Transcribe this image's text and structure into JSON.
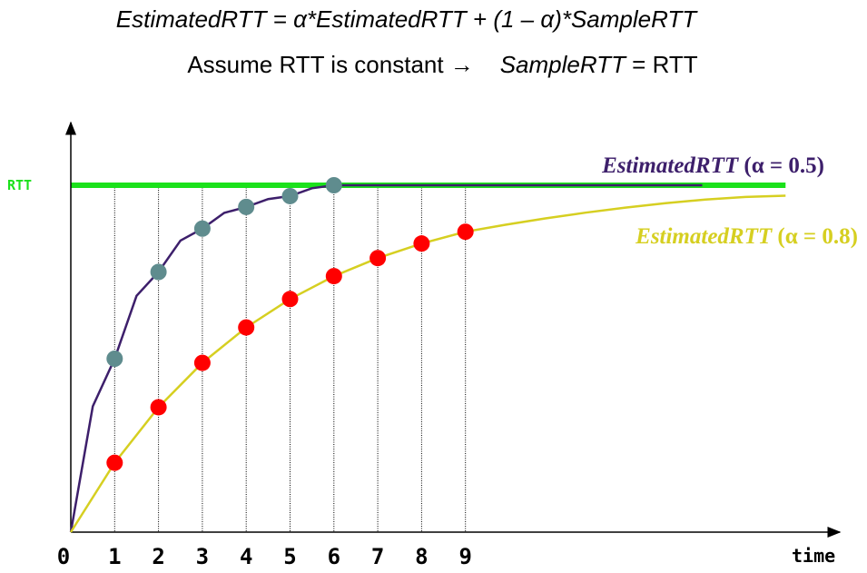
{
  "formula": {
    "line1": "EstimatedRTT = α*EstimatedRTT + (1 – α)*SampleRTT",
    "line2_prefix": "Assume RTT is constant →",
    "line2_var": "SampleRTT",
    "line2_suffix": " = RTT"
  },
  "chart_data": {
    "type": "line",
    "title": "",
    "xlabel": "time",
    "ylabel": "RTT",
    "x": [
      0,
      1,
      2,
      3,
      4,
      5,
      6,
      7,
      8,
      9
    ],
    "x_tick_labels": [
      "0",
      "1",
      "2",
      "3",
      "4",
      "5",
      "6",
      "7",
      "8",
      "9"
    ],
    "xlim": [
      0,
      17.2
    ],
    "ylim": [
      0,
      1.03
    ],
    "rtt_level": 1.0,
    "grid": "vertical dotted lines at x = 1..9",
    "series": [
      {
        "name": "EstimatedRTT (α = 0.5)",
        "label_var": "EstimatedRTT",
        "label_param": " (α = 0.5)",
        "color": "#3d1f6b",
        "marker_color": "#5f8c8e",
        "points": [
          {
            "x": 1,
            "y": 0.5
          },
          {
            "x": 2,
            "y": 0.75
          },
          {
            "x": 3,
            "y": 0.875
          },
          {
            "x": 4,
            "y": 0.9375
          },
          {
            "x": 5,
            "y": 0.96875
          },
          {
            "x": 6,
            "y": 1.0
          }
        ],
        "curve_end_x": 14.4
      },
      {
        "name": "EstimatedRTT (α = 0.8)",
        "label_var": "EstimatedRTT",
        "label_param": " (α = 0.8)",
        "color": "#d6cf21",
        "marker_color": "#ff0000",
        "points": [
          {
            "x": 1,
            "y": 0.2
          },
          {
            "x": 2,
            "y": 0.36
          },
          {
            "x": 3,
            "y": 0.488
          },
          {
            "x": 4,
            "y": 0.59
          },
          {
            "x": 5,
            "y": 0.672
          },
          {
            "x": 6,
            "y": 0.738
          },
          {
            "x": 7,
            "y": 0.79
          },
          {
            "x": 8,
            "y": 0.832
          },
          {
            "x": 9,
            "y": 0.866
          }
        ],
        "curve_end_x": 16.3,
        "curve_end_y": 0.97
      }
    ],
    "reference_line": {
      "name": "RTT",
      "y": 1.0,
      "color": "#1be11b"
    }
  }
}
